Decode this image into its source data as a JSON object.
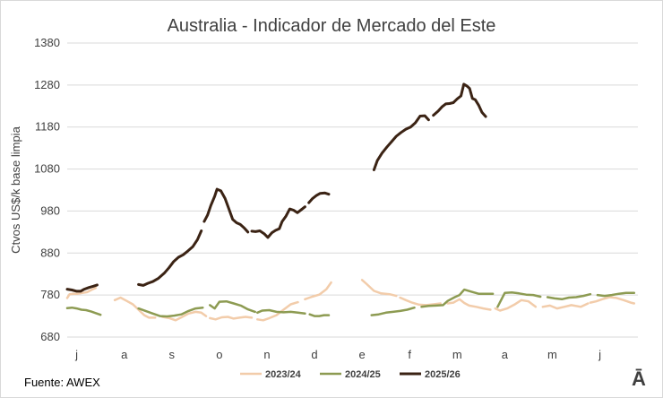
{
  "chart_data": {
    "type": "line",
    "title": "Australia - Indicador de Mercado del Este",
    "ylabel": "Ctvos US$/k base limpia",
    "xlabel": "",
    "ylim": [
      680,
      1380
    ],
    "yticks": [
      680,
      780,
      880,
      980,
      1080,
      1180,
      1280,
      1380
    ],
    "x_tick_labels": [
      "j",
      "a",
      "s",
      "o",
      "n",
      "d",
      "e",
      "f",
      "m",
      "a",
      "m",
      "j"
    ],
    "grid": true,
    "legend_position": "bottom",
    "series": [
      {
        "name": "2023/24",
        "color": "#f2ccaa",
        "segments": [
          [
            [
              0.0,
              773
            ],
            [
              0.05,
              782
            ],
            [
              0.12,
              783
            ],
            [
              0.22,
              783
            ],
            [
              0.32,
              785
            ],
            [
              0.42,
              787
            ],
            [
              0.52,
              793
            ],
            [
              0.6,
              797
            ]
          ],
          [
            [
              1.0,
              768
            ],
            [
              1.12,
              774
            ],
            [
              1.25,
              766
            ],
            [
              1.38,
              758
            ],
            [
              1.5,
              745
            ],
            [
              1.62,
              732
            ],
            [
              1.72,
              726
            ],
            [
              1.85,
              726
            ]
          ],
          [
            [
              2.0,
              728
            ],
            [
              2.15,
              725
            ],
            [
              2.28,
              720
            ],
            [
              2.4,
              727
            ],
            [
              2.55,
              736
            ],
            [
              2.7,
              740
            ],
            [
              2.82,
              738
            ],
            [
              2.92,
              730
            ]
          ],
          [
            [
              3.0,
              725
            ],
            [
              3.12,
              722
            ],
            [
              3.25,
              727
            ],
            [
              3.38,
              728
            ],
            [
              3.5,
              724
            ],
            [
              3.62,
              726
            ],
            [
              3.75,
              728
            ],
            [
              3.88,
              726
            ]
          ],
          [
            [
              4.0,
              722
            ],
            [
              4.12,
              720
            ],
            [
              4.25,
              725
            ],
            [
              4.4,
              732
            ],
            [
              4.55,
              745
            ],
            [
              4.7,
              758
            ],
            [
              4.85,
              763
            ]
          ],
          [
            [
              5.0,
              770
            ],
            [
              5.15,
              776
            ],
            [
              5.3,
              781
            ],
            [
              5.45,
              794
            ],
            [
              5.55,
              810
            ]
          ],
          [
            [
              6.2,
              816
            ],
            [
              6.3,
              806
            ],
            [
              6.45,
              790
            ],
            [
              6.6,
              784
            ],
            [
              6.78,
              782
            ],
            [
              6.92,
              778
            ]
          ],
          [
            [
              7.0,
              774
            ],
            [
              7.12,
              768
            ],
            [
              7.25,
              762
            ],
            [
              7.4,
              757
            ],
            [
              7.55,
              756
            ],
            [
              7.7,
              758
            ],
            [
              7.85,
              760
            ]
          ],
          [
            [
              8.0,
              760
            ],
            [
              8.12,
              762
            ],
            [
              8.25,
              770
            ],
            [
              8.35,
              761
            ],
            [
              8.45,
              755
            ],
            [
              8.6,
              752
            ],
            [
              8.75,
              748
            ],
            [
              8.9,
              745
            ]
          ],
          [
            [
              9.0,
              748
            ],
            [
              9.1,
              743
            ],
            [
              9.25,
              748
            ],
            [
              9.4,
              757
            ],
            [
              9.55,
              768
            ],
            [
              9.7,
              765
            ],
            [
              9.85,
              752
            ]
          ],
          [
            [
              10.0,
              752
            ],
            [
              10.15,
              755
            ],
            [
              10.3,
              748
            ],
            [
              10.45,
              752
            ],
            [
              10.6,
              756
            ],
            [
              10.8,
              752
            ],
            [
              10.95,
              760
            ]
          ],
          [
            [
              11.0,
              762
            ],
            [
              11.12,
              765
            ],
            [
              11.25,
              770
            ],
            [
              11.4,
              775
            ],
            [
              11.55,
              773
            ],
            [
              11.7,
              768
            ],
            [
              11.85,
              762
            ],
            [
              11.92,
              760
            ]
          ]
        ]
      },
      {
        "name": "2024/25",
        "color": "#8d9b52",
        "segments": [
          [
            [
              0.0,
              749
            ],
            [
              0.1,
              750
            ],
            [
              0.2,
              748
            ],
            [
              0.3,
              745
            ],
            [
              0.4,
              744
            ],
            [
              0.5,
              741
            ],
            [
              0.6,
              737
            ],
            [
              0.7,
              733
            ]
          ],
          [
            [
              1.5,
              748
            ],
            [
              1.65,
              742
            ],
            [
              1.8,
              736
            ],
            [
              1.95,
              730
            ],
            [
              2.1,
              729
            ],
            [
              2.25,
              731
            ],
            [
              2.4,
              734
            ],
            [
              2.55,
              742
            ],
            [
              2.7,
              748
            ],
            [
              2.85,
              750
            ]
          ],
          [
            [
              3.0,
              756
            ],
            [
              3.1,
              748
            ],
            [
              3.2,
              764
            ],
            [
              3.35,
              765
            ],
            [
              3.5,
              760
            ],
            [
              3.65,
              755
            ],
            [
              3.8,
              746
            ],
            [
              3.95,
              740
            ]
          ],
          [
            [
              4.0,
              738
            ],
            [
              4.1,
              743
            ],
            [
              4.25,
              744
            ],
            [
              4.4,
              740
            ],
            [
              4.55,
              739
            ],
            [
              4.7,
              740
            ],
            [
              4.85,
              738
            ],
            [
              5.0,
              736
            ]
          ],
          [
            [
              5.1,
              734
            ],
            [
              5.2,
              730
            ],
            [
              5.3,
              730
            ],
            [
              5.4,
              732
            ],
            [
              5.5,
              732
            ]
          ],
          [
            [
              6.4,
              732
            ],
            [
              6.55,
              734
            ],
            [
              6.7,
              738
            ],
            [
              6.85,
              740
            ],
            [
              7.0,
              742
            ],
            [
              7.15,
              745
            ],
            [
              7.3,
              750
            ]
          ],
          [
            [
              7.45,
              752
            ],
            [
              7.6,
              754
            ],
            [
              7.75,
              755
            ],
            [
              7.9,
              756
            ],
            [
              8.0,
              766
            ],
            [
              8.15,
              775
            ],
            [
              8.25,
              780
            ],
            [
              8.35,
              793
            ],
            [
              8.5,
              788
            ],
            [
              8.65,
              783
            ],
            [
              8.8,
              783
            ],
            [
              8.95,
              783
            ]
          ],
          [
            [
              9.05,
              752
            ],
            [
              9.2,
              785
            ],
            [
              9.35,
              786
            ],
            [
              9.5,
              784
            ],
            [
              9.65,
              781
            ],
            [
              9.8,
              780
            ],
            [
              9.95,
              776
            ]
          ],
          [
            [
              10.1,
              775
            ],
            [
              10.25,
              772
            ],
            [
              10.4,
              770
            ],
            [
              10.55,
              774
            ],
            [
              10.7,
              775
            ],
            [
              10.85,
              778
            ],
            [
              11.0,
              782
            ]
          ],
          [
            [
              11.15,
              780
            ],
            [
              11.3,
              778
            ],
            [
              11.45,
              780
            ],
            [
              11.6,
              783
            ],
            [
              11.75,
              785
            ],
            [
              11.92,
              785
            ]
          ]
        ]
      },
      {
        "name": "2025/26",
        "color": "#3b2314",
        "segments": [
          [
            [
              0.0,
              794
            ],
            [
              0.1,
              792
            ],
            [
              0.2,
              789
            ],
            [
              0.28,
              789
            ],
            [
              0.36,
              794
            ],
            [
              0.46,
              798
            ],
            [
              0.55,
              801
            ],
            [
              0.63,
              804
            ]
          ],
          [
            [
              1.5,
              805
            ],
            [
              1.6,
              803
            ],
            [
              1.7,
              808
            ],
            [
              1.8,
              812
            ],
            [
              1.92,
              820
            ],
            [
              2.04,
              832
            ],
            [
              2.14,
              845
            ],
            [
              2.24,
              860
            ],
            [
              2.34,
              870
            ],
            [
              2.44,
              876
            ],
            [
              2.54,
              885
            ],
            [
              2.64,
              895
            ],
            [
              2.74,
              912
            ],
            [
              2.82,
              933
            ]
          ],
          [
            [
              2.88,
              955
            ],
            [
              2.95,
              970
            ],
            [
              3.02,
              993
            ],
            [
              3.1,
              1015
            ],
            [
              3.15,
              1032
            ],
            [
              3.23,
              1028
            ],
            [
              3.32,
              1010
            ],
            [
              3.4,
              985
            ],
            [
              3.48,
              960
            ],
            [
              3.56,
              952
            ],
            [
              3.64,
              948
            ],
            [
              3.72,
              940
            ],
            [
              3.8,
              930
            ]
          ],
          [
            [
              3.88,
              932
            ],
            [
              3.96,
              931
            ],
            [
              4.05,
              933
            ],
            [
              4.14,
              926
            ],
            [
              4.22,
              917
            ],
            [
              4.3,
              928
            ],
            [
              4.38,
              934
            ],
            [
              4.46,
              938
            ],
            [
              4.52,
              955
            ],
            [
              4.6,
              968
            ],
            [
              4.68,
              985
            ],
            [
              4.76,
              982
            ],
            [
              4.84,
              976
            ],
            [
              4.92,
              983
            ],
            [
              5.0,
              990
            ]
          ],
          [
            [
              5.08,
              1000
            ],
            [
              5.16,
              1010
            ],
            [
              5.24,
              1017
            ],
            [
              5.32,
              1022
            ],
            [
              5.42,
              1023
            ],
            [
              5.5,
              1020
            ]
          ],
          [
            [
              6.45,
              1078
            ],
            [
              6.52,
              1100
            ],
            [
              6.62,
              1118
            ],
            [
              6.72,
              1132
            ],
            [
              6.82,
              1145
            ],
            [
              6.92,
              1158
            ],
            [
              7.02,
              1167
            ],
            [
              7.12,
              1175
            ],
            [
              7.22,
              1180
            ],
            [
              7.32,
              1190
            ],
            [
              7.42,
              1206
            ],
            [
              7.52,
              1207
            ],
            [
              7.6,
              1197
            ]
          ],
          [
            [
              7.7,
              1208
            ],
            [
              7.8,
              1218
            ],
            [
              7.88,
              1228
            ],
            [
              7.96,
              1235
            ],
            [
              8.04,
              1236
            ],
            [
              8.12,
              1238
            ],
            [
              8.2,
              1247
            ],
            [
              8.28,
              1254
            ],
            [
              8.34,
              1282
            ],
            [
              8.4,
              1278
            ],
            [
              8.46,
              1272
            ],
            [
              8.52,
              1248
            ],
            [
              8.58,
              1245
            ],
            [
              8.65,
              1232
            ],
            [
              8.72,
              1215
            ],
            [
              8.8,
              1205
            ]
          ]
        ]
      }
    ]
  },
  "source_label": "Fuente: AWEX",
  "logo_glyph": "Ā"
}
